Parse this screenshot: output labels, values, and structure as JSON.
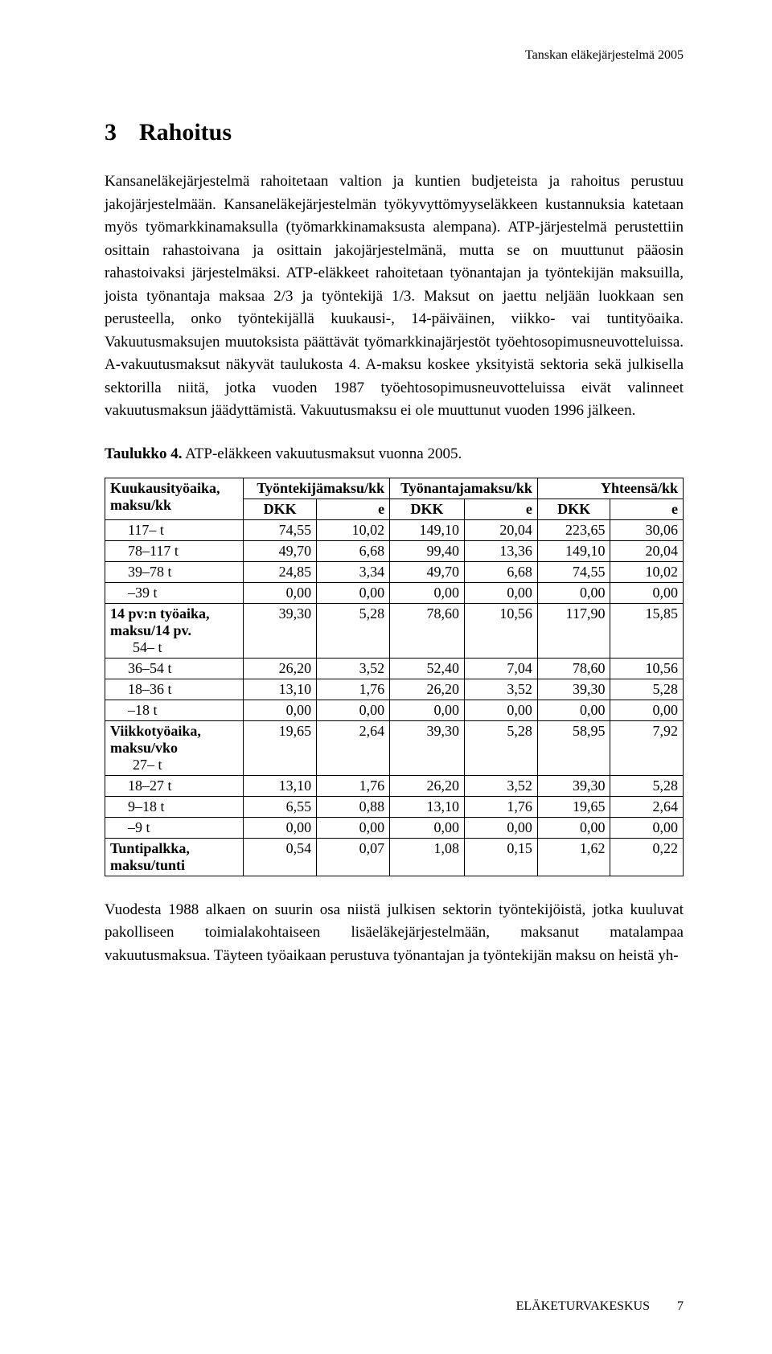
{
  "header": {
    "running": "Tanskan eläkejärjestelmä 2005"
  },
  "section": {
    "number": "3",
    "title": "Rahoitus"
  },
  "paragraphs": {
    "p1": "Kansaneläkejärjestelmä rahoitetaan valtion ja kuntien budjeteista ja rahoitus perustuu jakojärjestelmään. Kansaneläkejärjestelmän työkyvyttömyyseläkkeen kustannuksia katetaan myös työmarkkinamaksulla (työmarkkinamaksusta alempana). ATP-järjestelmä perustettiin osittain rahastoivana ja osittain jakojärjestelmänä, mutta se on muuttunut pääosin rahastoivaksi järjestelmäksi. ATP-eläkkeet rahoitetaan työnantajan ja työntekijän maksuilla, joista työnantaja maksaa 2/3 ja työntekijä 1/3. Maksut on jaettu neljään luokkaan sen perusteella, onko työntekijällä kuukausi-, 14-päiväinen, viikko- vai tuntityöaika. Vakuutusmaksujen muutoksista päättävät työmarkkinajärjestöt työehtosopimusneuvotteluissa. A-vakuutusmaksut näkyvät taulukosta 4. A-maksu koskee yksityistä sektoria sekä julkisella sektorilla niitä, jotka vuoden 1987 työehtosopimusneuvotteluissa eivät valinneet vakuutusmaksun jäädyttämistä. Vakuutusmaksu ei ole muuttunut vuoden 1996 jälkeen.",
    "p2": "Vuodesta 1988 alkaen on suurin osa niistä julkisen sektorin työntekijöistä, jotka kuuluvat pakolliseen toimialakohtaiseen lisäeläkejärjestelmään, maksanut matalampaa vakuutusmaksua. Täyteen työaikaan perustuva työnantajan ja työntekijän maksu on heistä yh-"
  },
  "table": {
    "caption_bold": "Taulukko 4.",
    "caption_rest": " ATP-eläkkeen vakuutusmaksut vuonna 2005.",
    "headers": {
      "emp_kk": "Työntekijämaksu/kk",
      "empr_kk": "Työnantajamaksu/kk",
      "tot_kk": "Yhteensä/kk",
      "dkk": "DKK",
      "e": "e"
    },
    "groups": [
      {
        "label": "Kuukausityöaika, maksu/kk",
        "rows": [
          {
            "l": "117–   t",
            "a": "74,55",
            "b": "10,02",
            "c": "149,10",
            "d": "20,04",
            "e": "223,65",
            "f": "30,06"
          },
          {
            "l": "78–117 t",
            "a": "49,70",
            "b": "6,68",
            "c": "99,40",
            "d": "13,36",
            "e": "149,10",
            "f": "20,04"
          },
          {
            "l": "39–78 t",
            "a": "24,85",
            "b": "3,34",
            "c": "49,70",
            "d": "6,68",
            "e": "74,55",
            "f": "10,02"
          },
          {
            "l": "–39 t",
            "a": "0,00",
            "b": "0,00",
            "c": "0,00",
            "d": "0,00",
            "e": "0,00",
            "f": "0,00"
          }
        ]
      },
      {
        "label": "14 pv:n työaika, maksu/14 pv.",
        "rows": [
          {
            "l": "54–   t",
            "a": "39,30",
            "b": "5,28",
            "c": "78,60",
            "d": "10,56",
            "e": "117,90",
            "f": "15,85"
          },
          {
            "l": "36–54 t",
            "a": "26,20",
            "b": "3,52",
            "c": "52,40",
            "d": "7,04",
            "e": "78,60",
            "f": "10,56"
          },
          {
            "l": "18–36 t",
            "a": "13,10",
            "b": "1,76",
            "c": "26,20",
            "d": "3,52",
            "e": "39,30",
            "f": "5,28"
          },
          {
            "l": "–18 t",
            "a": "0,00",
            "b": "0,00",
            "c": "0,00",
            "d": "0,00",
            "e": "0,00",
            "f": "0,00"
          }
        ]
      },
      {
        "label": "Viikkotyöaika, maksu/vko",
        "rows": [
          {
            "l": "27–   t",
            "a": "19,65",
            "b": "2,64",
            "c": "39,30",
            "d": "5,28",
            "e": "58,95",
            "f": "7,92"
          },
          {
            "l": "18–27 t",
            "a": "13,10",
            "b": "1,76",
            "c": "26,20",
            "d": "3,52",
            "e": "39,30",
            "f": "5,28"
          },
          {
            "l": "9–18 t",
            "a": "6,55",
            "b": "0,88",
            "c": "13,10",
            "d": "1,76",
            "e": "19,65",
            "f": "2,64"
          },
          {
            "l": "–9 t",
            "a": "0,00",
            "b": "0,00",
            "c": "0,00",
            "d": "0,00",
            "e": "0,00",
            "f": "0,00"
          }
        ]
      },
      {
        "label": "Tuntipalkka, maksu/tunti",
        "single": {
          "a": "0,54",
          "b": "0,07",
          "c": "1,08",
          "d": "0,15",
          "e": "1,62",
          "f": "0,22"
        }
      }
    ]
  },
  "footer": {
    "publisher": "ELÄKETURVAKESKUS",
    "page": "7"
  }
}
